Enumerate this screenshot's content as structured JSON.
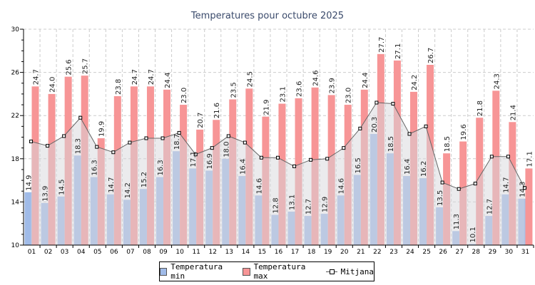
{
  "chart_data": {
    "type": "bar",
    "title": "Temperatures pour octubre 2025",
    "categories": [
      "01",
      "02",
      "03",
      "04",
      "05",
      "06",
      "07",
      "08",
      "09",
      "10",
      "11",
      "12",
      "13",
      "14",
      "15",
      "16",
      "17",
      "18",
      "19",
      "20",
      "21",
      "22",
      "23",
      "24",
      "25",
      "26",
      "27",
      "28",
      "29",
      "30",
      "31"
    ],
    "ylim": [
      10,
      30
    ],
    "yticks": [
      10,
      14,
      18,
      22,
      26,
      30
    ],
    "grid": true,
    "legend_position": "bottom",
    "series": [
      {
        "name": "Temperatura min",
        "type": "bar",
        "color": "#a0bbe8",
        "values": [
          14.9,
          13.9,
          14.5,
          18.3,
          16.3,
          14.7,
          14.2,
          15.2,
          16.3,
          18.7,
          17.1,
          16.9,
          18.0,
          16.4,
          14.6,
          12.8,
          13.1,
          12.7,
          12.9,
          14.6,
          16.5,
          20.3,
          18.5,
          16.4,
          16.2,
          13.5,
          11.3,
          10.1,
          12.7,
          14.7,
          14.3
        ]
      },
      {
        "name": "Temperatura max",
        "type": "bar",
        "color": "#f79596",
        "values": [
          24.7,
          24.0,
          25.6,
          25.7,
          19.9,
          23.8,
          24.7,
          24.7,
          24.4,
          23.0,
          20.7,
          21.6,
          23.5,
          24.5,
          21.9,
          23.1,
          23.6,
          24.6,
          23.9,
          23.0,
          24.4,
          27.7,
          27.1,
          24.2,
          26.7,
          18.5,
          19.6,
          21.8,
          24.3,
          21.4,
          17.1
        ]
      },
      {
        "name": "Mitjana",
        "type": "line",
        "color": "#666666",
        "values": [
          19.6,
          19.2,
          20.1,
          21.8,
          19.1,
          18.6,
          19.5,
          19.9,
          19.9,
          20.4,
          18.4,
          19.0,
          20.1,
          19.5,
          18.1,
          18.1,
          17.3,
          17.9,
          18.0,
          19.0,
          20.8,
          23.2,
          23.1,
          20.3,
          21.0,
          15.8,
          15.2,
          15.7,
          18.2,
          18.2,
          15.3
        ]
      }
    ]
  }
}
